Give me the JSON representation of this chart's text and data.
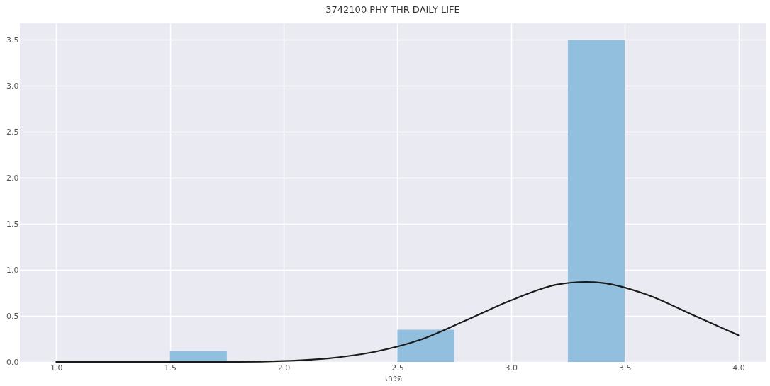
{
  "chart_data": {
    "type": "histogram",
    "title": "3742100 PHY THR DAILY LIFE",
    "xlabel": "เกรด",
    "bins": [
      1.0,
      1.25,
      1.5,
      1.75,
      2.0,
      2.25,
      2.5,
      2.75,
      3.0,
      3.25,
      3.5,
      3.75,
      4.0
    ],
    "values": [
      0,
      0,
      0.12,
      0,
      0,
      0,
      0.35,
      0,
      0,
      3.5,
      0,
      0
    ],
    "color": "#92bfde",
    "series": [
      {
        "type": "line",
        "color": "#1a1a1a",
        "x": [
          1.0,
          1.5,
          1.8,
          2.0,
          2.2,
          2.4,
          2.6,
          2.8,
          3.0,
          3.2,
          3.33,
          3.4,
          3.6,
          3.8,
          4.0
        ],
        "values": [
          0,
          0,
          0,
          0.01,
          0.04,
          0.11,
          0.24,
          0.45,
          0.67,
          0.84,
          0.87,
          0.86,
          0.73,
          0.51,
          0.29
        ]
      }
    ],
    "xlim": [
      0.84,
      4.12
    ],
    "ylim": [
      0,
      3.68
    ],
    "xticks": [
      {
        "value": 1,
        "label": "1.0"
      },
      {
        "value": 1.5,
        "label": "1.5"
      },
      {
        "value": 2,
        "label": "2.0"
      },
      {
        "value": 2.5,
        "label": "2.5"
      },
      {
        "value": 3,
        "label": "3.0"
      },
      {
        "value": 3.5,
        "label": "3.5"
      },
      {
        "value": 4,
        "label": "4.0"
      }
    ],
    "yticks": [
      {
        "value": 0,
        "label": "0.0"
      },
      {
        "value": 0.5,
        "label": "0.5"
      },
      {
        "value": 1,
        "label": "1.0"
      },
      {
        "value": 1.5,
        "label": "1.5"
      },
      {
        "value": 2,
        "label": "2.0"
      },
      {
        "value": 2.5,
        "label": "2.5"
      },
      {
        "value": 3,
        "label": "3.0"
      },
      {
        "value": 3.5,
        "label": "3.5"
      }
    ],
    "grid": true
  }
}
